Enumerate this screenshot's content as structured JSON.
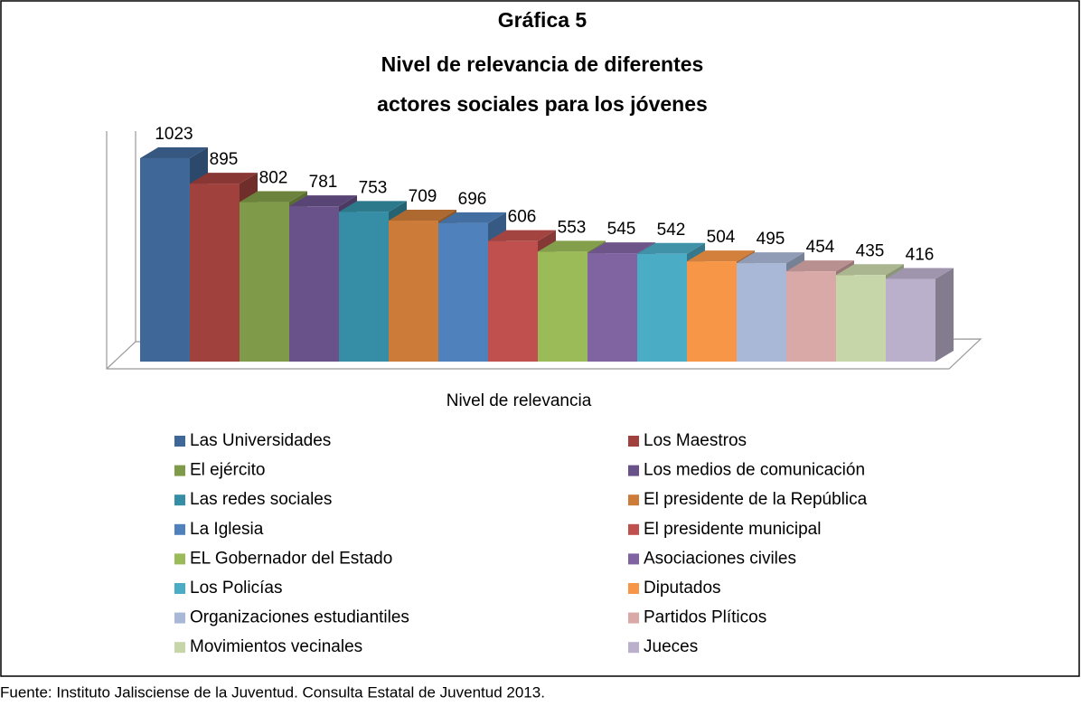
{
  "chart_data": {
    "type": "bar3d",
    "heading": "Gráfica 5",
    "title": [
      "Nivel de relevancia de diferentes",
      "actores sociales para los jóvenes"
    ],
    "categories": [
      "Nivel de relevancia"
    ],
    "series": [
      {
        "name": "Las Universidades",
        "color": "#3F6797",
        "values": [
          1023
        ]
      },
      {
        "name": "Los Maestros",
        "color": "#A0413E",
        "values": [
          895
        ]
      },
      {
        "name": "El ejército",
        "color": "#7F9A48",
        "values": [
          802
        ]
      },
      {
        "name": "Los medios de comunicación",
        "color": "#69518A",
        "values": [
          781
        ]
      },
      {
        "name": "Las redes sociales",
        "color": "#358EA5",
        "values": [
          753
        ]
      },
      {
        "name": "El presidente de la República",
        "color": "#CC7B38",
        "values": [
          709
        ]
      },
      {
        "name": "La Iglesia",
        "color": "#4F81BD",
        "values": [
          696
        ]
      },
      {
        "name": "El presidente municipal",
        "color": "#C0504D",
        "values": [
          606
        ]
      },
      {
        "name": "EL Gobernador del Estado",
        "color": "#9BBB59",
        "values": [
          553
        ]
      },
      {
        "name": "Asociaciones civiles",
        "color": "#8064A2",
        "values": [
          545
        ]
      },
      {
        "name": "Los Policías",
        "color": "#4BACC6",
        "values": [
          542
        ]
      },
      {
        "name": "Diputados",
        "color": "#F79646",
        "values": [
          504
        ]
      },
      {
        "name": "Organizaciones estudiantiles",
        "color": "#A9B8D6",
        "values": [
          495
        ]
      },
      {
        "name": "Partidos Plíticos",
        "color": "#D9A9A8",
        "values": [
          454
        ]
      },
      {
        "name": "Movimientos vecinales",
        "color": "#C7D6A8",
        "values": [
          435
        ]
      },
      {
        "name": "Jueces",
        "color": "#BBB0CB",
        "values": [
          416
        ]
      }
    ],
    "legend": "bottom"
  },
  "source": "Fuente: Instituto Jalisciense de la Juventud. Consulta Estatal de Juventud 2013."
}
